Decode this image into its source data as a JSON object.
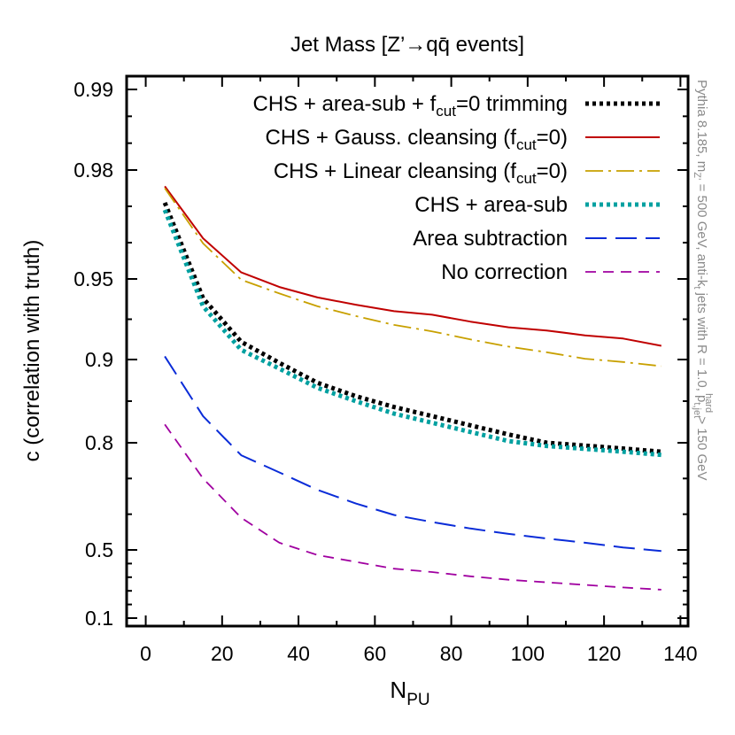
{
  "chart_data": {
    "type": "line",
    "title": "Jet Mass [Z’→qq̄ events]",
    "xlabel": {
      "main": "N",
      "sub": "PU"
    },
    "ylabel": "c (correlation with truth)",
    "side_note": "Pythia 8.185, m_Z' = 500 GeV, anti-k_t jets with R = 1.0, p_t,jet^hard > 150 GeV",
    "side_note_parts": {
      "p1": "Pythia 8.185, m",
      "p1sub": "Z’",
      "p2": " = 500 GeV, anti-k",
      "p2sub": "t",
      "p3": " jets with R = 1.0, p",
      "p3sub": "t,jet",
      "p3sup": "hard",
      "p4": " > 150 GeV"
    },
    "y_scale": "correlation-stretched (non-linear)",
    "xlim": [
      -5,
      142
    ],
    "x_ticks": [
      0,
      20,
      40,
      60,
      80,
      100,
      120,
      140
    ],
    "y_ticks": [
      0.1,
      0.5,
      0.8,
      0.9,
      0.95,
      0.98,
      0.99
    ],
    "y_tick_labels": [
      "0.1",
      "0.5",
      "0.8",
      "0.9",
      "0.95",
      "0.98",
      "0.99"
    ],
    "x": [
      5,
      15,
      25,
      35,
      45,
      55,
      65,
      75,
      85,
      95,
      105,
      115,
      125,
      135
    ],
    "series": [
      {
        "name": "CHS + area-sub + f_cut=0 trimming",
        "label_parts": {
          "pre": "CHS + area-sub + f",
          "sub": "cut",
          "post": "=0 trimming"
        },
        "color": "#000000",
        "style": "dotted-heavy",
        "values": [
          0.971,
          0.938,
          0.911,
          0.896,
          0.872,
          0.856,
          0.843,
          0.832,
          0.821,
          0.81,
          0.8,
          0.792,
          0.784,
          0.775
        ]
      },
      {
        "name": "CHS + Gauss. cleansing (f_cut=0)",
        "label_parts": {
          "pre": "CHS + Gauss. cleansing (f",
          "sub": "cut",
          "post": "=0)"
        },
        "color": "#c00000",
        "style": "solid",
        "values": [
          0.9755,
          0.9612,
          0.9518,
          0.945,
          0.9385,
          0.934,
          0.93,
          0.9278,
          0.9235,
          0.92,
          0.918,
          0.915,
          0.913,
          0.9085
        ]
      },
      {
        "name": "CHS + Linear cleansing (f_cut=0)",
        "label_parts": {
          "pre": "CHS + Linear cleansing (f",
          "sub": "cut",
          "post": "=0)"
        },
        "color": "#c8a000",
        "style": "dash-dot",
        "values": [
          0.975,
          0.9598,
          0.9495,
          0.941,
          0.933,
          0.927,
          0.9215,
          0.9175,
          0.9125,
          0.908,
          0.9045,
          0.9005,
          0.897,
          0.892
        ]
      },
      {
        "name": "CHS + area-sub",
        "label_parts": {
          "pre": "CHS + area-sub",
          "sub": "",
          "post": ""
        },
        "color": "#00a0a0",
        "style": "dotted-heavy",
        "values": [
          0.969,
          0.933,
          0.906,
          0.889,
          0.866,
          0.85,
          0.835,
          0.824,
          0.813,
          0.802,
          0.791,
          0.783,
          0.775,
          0.766
        ]
      },
      {
        "name": "Area subtraction",
        "label_parts": {
          "pre": "Area subtraction",
          "sub": "",
          "post": ""
        },
        "color": "#0a2cd8",
        "style": "long-dash",
        "values": [
          0.902,
          0.832,
          0.765,
          0.717,
          0.668,
          0.63,
          0.598,
          0.578,
          0.56,
          0.545,
          0.532,
          0.52,
          0.507,
          0.494
        ]
      },
      {
        "name": "No correction",
        "label_parts": {
          "pre": "No correction",
          "sub": "",
          "post": ""
        },
        "color": "#a000a0",
        "style": "dashed",
        "values": [
          0.822,
          0.7,
          0.59,
          0.52,
          0.47,
          0.43,
          0.39,
          0.37,
          0.345,
          0.325,
          0.31,
          0.295,
          0.28,
          0.267
        ]
      }
    ],
    "legend_position": "top-right",
    "grid": false
  }
}
